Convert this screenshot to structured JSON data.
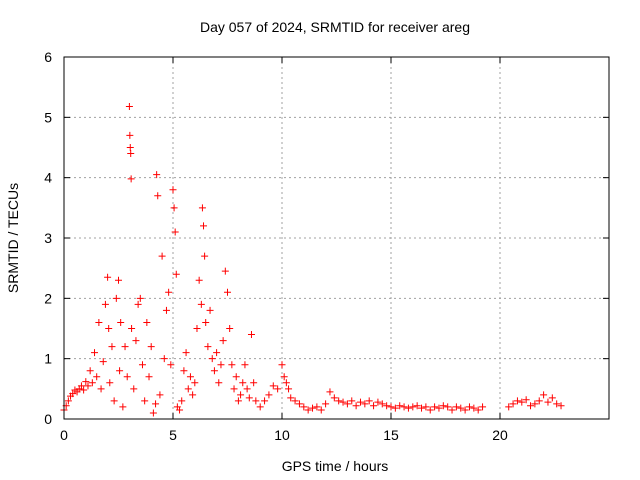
{
  "chart_data": {
    "type": "scatter",
    "title": "Day 057 of 2024, SRMTID for receiver areg",
    "xlabel": "GPS time / hours",
    "ylabel": "SRMTID / TECUs",
    "xlim": [
      0,
      25
    ],
    "ylim": [
      0,
      6
    ],
    "xticks": [
      "0",
      "5",
      "10",
      "15",
      "20"
    ],
    "yticks": [
      "0",
      "1",
      "2",
      "3",
      "4",
      "5",
      "6"
    ],
    "grid": true,
    "marker": "+",
    "color": "#ff0000",
    "series": [
      {
        "name": "SRMTID",
        "points": [
          [
            0.0,
            0.15
          ],
          [
            0.1,
            0.22
          ],
          [
            0.2,
            0.3
          ],
          [
            0.3,
            0.38
          ],
          [
            0.4,
            0.42
          ],
          [
            0.5,
            0.48
          ],
          [
            0.6,
            0.45
          ],
          [
            0.7,
            0.5
          ],
          [
            0.8,
            0.55
          ],
          [
            0.9,
            0.48
          ],
          [
            1.0,
            0.62
          ],
          [
            1.1,
            0.55
          ],
          [
            1.2,
            0.8
          ],
          [
            1.3,
            0.6
          ],
          [
            1.4,
            1.1
          ],
          [
            1.5,
            0.7
          ],
          [
            1.6,
            1.6
          ],
          [
            1.7,
            0.5
          ],
          [
            1.8,
            0.95
          ],
          [
            1.9,
            1.9
          ],
          [
            2.0,
            2.35
          ],
          [
            2.05,
            1.5
          ],
          [
            2.1,
            0.6
          ],
          [
            2.2,
            1.2
          ],
          [
            2.3,
            0.3
          ],
          [
            2.4,
            2.0
          ],
          [
            2.5,
            2.3
          ],
          [
            2.55,
            0.8
          ],
          [
            2.6,
            1.6
          ],
          [
            2.7,
            0.2
          ],
          [
            2.8,
            1.2
          ],
          [
            2.9,
            0.7
          ],
          [
            3.0,
            5.18
          ],
          [
            3.02,
            4.7
          ],
          [
            3.04,
            4.5
          ],
          [
            3.06,
            4.4
          ],
          [
            3.08,
            3.98
          ],
          [
            3.1,
            1.5
          ],
          [
            3.2,
            0.5
          ],
          [
            3.3,
            1.3
          ],
          [
            3.4,
            1.9
          ],
          [
            3.5,
            2.0
          ],
          [
            3.6,
            0.9
          ],
          [
            3.7,
            0.3
          ],
          [
            3.8,
            1.6
          ],
          [
            3.9,
            0.7
          ],
          [
            4.0,
            1.2
          ],
          [
            4.1,
            0.1
          ],
          [
            4.2,
            0.25
          ],
          [
            4.25,
            4.05
          ],
          [
            4.3,
            3.7
          ],
          [
            4.4,
            0.4
          ],
          [
            4.5,
            2.7
          ],
          [
            4.6,
            1.0
          ],
          [
            4.7,
            1.8
          ],
          [
            4.8,
            2.1
          ],
          [
            4.9,
            0.9
          ],
          [
            5.0,
            3.8
          ],
          [
            5.05,
            3.5
          ],
          [
            5.1,
            3.1
          ],
          [
            5.15,
            2.4
          ],
          [
            5.2,
            0.2
          ],
          [
            5.3,
            0.15
          ],
          [
            5.4,
            0.3
          ],
          [
            5.5,
            0.8
          ],
          [
            5.6,
            1.1
          ],
          [
            5.7,
            0.5
          ],
          [
            5.8,
            0.7
          ],
          [
            5.9,
            0.4
          ],
          [
            6.0,
            0.6
          ],
          [
            6.1,
            1.5
          ],
          [
            6.2,
            2.3
          ],
          [
            6.3,
            1.9
          ],
          [
            6.35,
            3.5
          ],
          [
            6.4,
            3.2
          ],
          [
            6.45,
            2.7
          ],
          [
            6.5,
            1.6
          ],
          [
            6.6,
            1.2
          ],
          [
            6.7,
            1.8
          ],
          [
            6.8,
            1.0
          ],
          [
            6.9,
            0.8
          ],
          [
            7.0,
            1.1
          ],
          [
            7.1,
            0.6
          ],
          [
            7.2,
            0.9
          ],
          [
            7.3,
            1.3
          ],
          [
            7.4,
            2.45
          ],
          [
            7.5,
            2.1
          ],
          [
            7.6,
            1.5
          ],
          [
            7.7,
            0.9
          ],
          [
            7.8,
            0.5
          ],
          [
            7.9,
            0.7
          ],
          [
            8.0,
            0.3
          ],
          [
            8.1,
            0.4
          ],
          [
            8.2,
            0.6
          ],
          [
            8.3,
            0.9
          ],
          [
            8.4,
            0.5
          ],
          [
            8.5,
            0.35
          ],
          [
            8.6,
            1.4
          ],
          [
            8.7,
            0.6
          ],
          [
            8.8,
            0.3
          ],
          [
            9.0,
            0.2
          ],
          [
            9.2,
            0.3
          ],
          [
            9.4,
            0.4
          ],
          [
            9.6,
            0.55
          ],
          [
            9.8,
            0.5
          ],
          [
            10.0,
            0.9
          ],
          [
            10.1,
            0.7
          ],
          [
            10.2,
            0.6
          ],
          [
            10.3,
            0.5
          ],
          [
            10.4,
            0.35
          ],
          [
            10.6,
            0.3
          ],
          [
            10.8,
            0.25
          ],
          [
            11.0,
            0.2
          ],
          [
            11.2,
            0.15
          ],
          [
            11.4,
            0.18
          ],
          [
            11.6,
            0.2
          ],
          [
            11.8,
            0.15
          ],
          [
            12.0,
            0.25
          ],
          [
            12.2,
            0.45
          ],
          [
            12.4,
            0.35
          ],
          [
            12.6,
            0.3
          ],
          [
            12.8,
            0.28
          ],
          [
            13.0,
            0.25
          ],
          [
            13.2,
            0.3
          ],
          [
            13.4,
            0.22
          ],
          [
            13.6,
            0.28
          ],
          [
            13.8,
            0.25
          ],
          [
            14.0,
            0.3
          ],
          [
            14.2,
            0.22
          ],
          [
            14.4,
            0.28
          ],
          [
            14.6,
            0.25
          ],
          [
            14.8,
            0.22
          ],
          [
            15.0,
            0.2
          ],
          [
            15.2,
            0.18
          ],
          [
            15.4,
            0.22
          ],
          [
            15.6,
            0.2
          ],
          [
            15.8,
            0.18
          ],
          [
            16.0,
            0.2
          ],
          [
            16.2,
            0.22
          ],
          [
            16.4,
            0.18
          ],
          [
            16.6,
            0.2
          ],
          [
            16.8,
            0.15
          ],
          [
            17.0,
            0.2
          ],
          [
            17.2,
            0.18
          ],
          [
            17.4,
            0.22
          ],
          [
            17.6,
            0.2
          ],
          [
            17.8,
            0.15
          ],
          [
            18.0,
            0.2
          ],
          [
            18.2,
            0.18
          ],
          [
            18.4,
            0.15
          ],
          [
            18.6,
            0.2
          ],
          [
            18.8,
            0.18
          ],
          [
            19.0,
            0.15
          ],
          [
            19.2,
            0.2
          ],
          [
            20.4,
            0.2
          ],
          [
            20.6,
            0.25
          ],
          [
            20.8,
            0.3
          ],
          [
            21.0,
            0.28
          ],
          [
            21.2,
            0.32
          ],
          [
            21.4,
            0.22
          ],
          [
            21.6,
            0.25
          ],
          [
            21.8,
            0.3
          ],
          [
            22.0,
            0.4
          ],
          [
            22.2,
            0.28
          ],
          [
            22.4,
            0.35
          ],
          [
            22.6,
            0.25
          ],
          [
            22.8,
            0.22
          ]
        ]
      }
    ]
  }
}
